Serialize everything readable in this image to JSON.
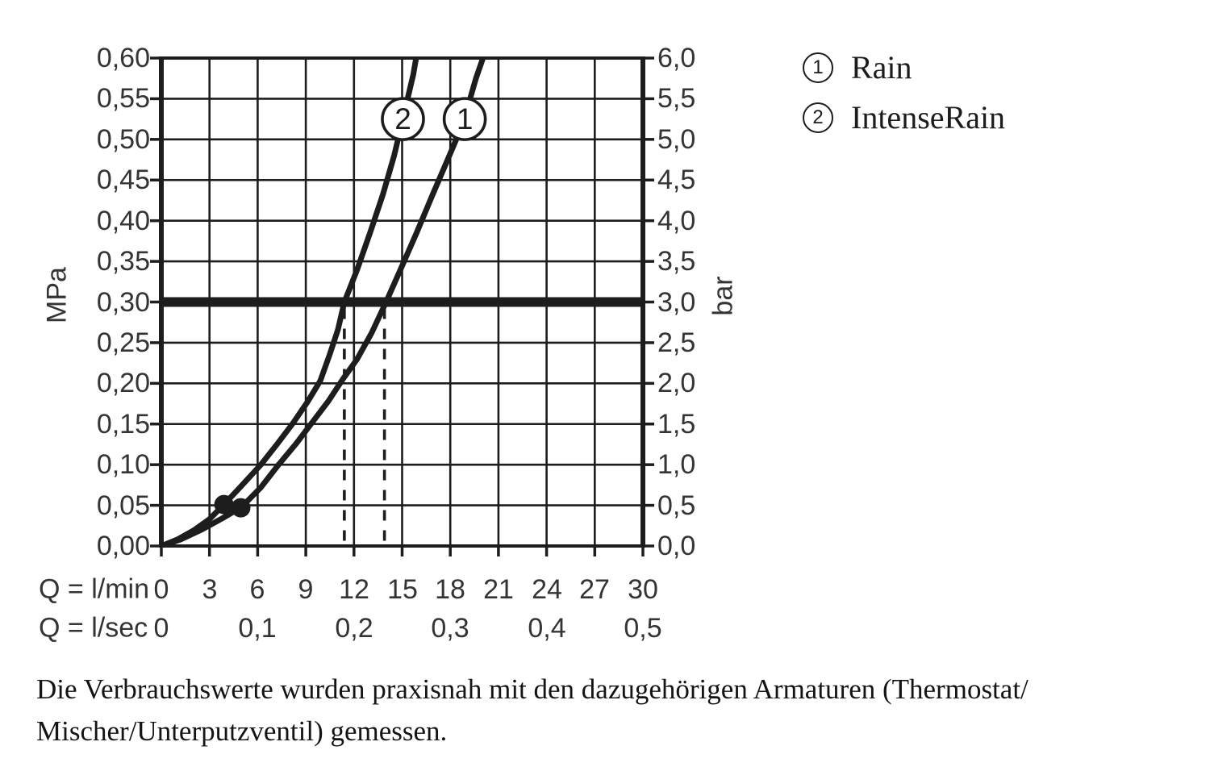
{
  "page": {
    "background": "#ffffff",
    "ink": "#1d1d1d",
    "text_color": "#343434"
  },
  "chart_data": {
    "type": "line",
    "title": "",
    "grid": true,
    "x_axis": {
      "label": "Q = l/min",
      "range": [
        0,
        30
      ],
      "grid_step": 3,
      "ticks": [
        {
          "v": 0,
          "label": "0"
        },
        {
          "v": 3,
          "label": "3"
        },
        {
          "v": 6,
          "label": "6"
        },
        {
          "v": 9,
          "label": "9"
        },
        {
          "v": 12,
          "label": "12"
        },
        {
          "v": 15,
          "label": "15"
        },
        {
          "v": 18,
          "label": "18"
        },
        {
          "v": 21,
          "label": "21"
        },
        {
          "v": 24,
          "label": "24"
        },
        {
          "v": 27,
          "label": "27"
        },
        {
          "v": 30,
          "label": "30"
        }
      ]
    },
    "x_axis_secondary": {
      "label": "Q = l/sec",
      "ticks": [
        {
          "v": 0,
          "label": "0"
        },
        {
          "v": 6,
          "label": "0,1"
        },
        {
          "v": 12,
          "label": "0,2"
        },
        {
          "v": 18,
          "label": "0,3"
        },
        {
          "v": 24,
          "label": "0,4"
        },
        {
          "v": 30,
          "label": "0,5"
        }
      ]
    },
    "y_axis_left": {
      "label": "MPa",
      "range": [
        0,
        0.6
      ],
      "grid_step": 0.05,
      "ticks": [
        {
          "v": 0.6,
          "label": "0,60"
        },
        {
          "v": 0.55,
          "label": "0,55"
        },
        {
          "v": 0.5,
          "label": "0,50"
        },
        {
          "v": 0.45,
          "label": "0,45"
        },
        {
          "v": 0.4,
          "label": "0,40"
        },
        {
          "v": 0.35,
          "label": "0,35"
        },
        {
          "v": 0.3,
          "label": "0,30"
        },
        {
          "v": 0.25,
          "label": "0,25"
        },
        {
          "v": 0.2,
          "label": "0,20"
        },
        {
          "v": 0.15,
          "label": "0,15"
        },
        {
          "v": 0.1,
          "label": "0,10"
        },
        {
          "v": 0.05,
          "label": "0,05"
        },
        {
          "v": 0.0,
          "label": "0,00"
        }
      ]
    },
    "y_axis_right": {
      "label": "bar",
      "range": [
        0,
        6
      ],
      "ticks": [
        {
          "v": 6.0,
          "label": "6,0"
        },
        {
          "v": 5.5,
          "label": "5,5"
        },
        {
          "v": 5.0,
          "label": "5,0"
        },
        {
          "v": 4.5,
          "label": "4,5"
        },
        {
          "v": 4.0,
          "label": "4,0"
        },
        {
          "v": 3.5,
          "label": "3,5"
        },
        {
          "v": 3.0,
          "label": "3,0"
        },
        {
          "v": 2.5,
          "label": "2,5"
        },
        {
          "v": 2.0,
          "label": "2,0"
        },
        {
          "v": 1.5,
          "label": "1,5"
        },
        {
          "v": 1.0,
          "label": "1,0"
        },
        {
          "v": 0.5,
          "label": "0,5"
        },
        {
          "v": 0.0,
          "label": "0,0"
        }
      ]
    },
    "series": [
      {
        "marker": "1",
        "name": "Rain",
        "label_pos": [
          18.9,
          0.525
        ],
        "points": [
          [
            0,
            0
          ],
          [
            1.2,
            0.008
          ],
          [
            2.5,
            0.02
          ],
          [
            3.8,
            0.034
          ],
          [
            5.0,
            0.048
          ],
          [
            6.2,
            0.072
          ],
          [
            7.3,
            0.1
          ],
          [
            8.4,
            0.126
          ],
          [
            9.4,
            0.152
          ],
          [
            10.4,
            0.178
          ],
          [
            11.3,
            0.205
          ],
          [
            12.2,
            0.23
          ],
          [
            13.1,
            0.262
          ],
          [
            14.0,
            0.3
          ],
          [
            14.9,
            0.34
          ],
          [
            15.9,
            0.385
          ],
          [
            16.9,
            0.432
          ],
          [
            17.9,
            0.478
          ],
          [
            18.8,
            0.52
          ],
          [
            19.6,
            0.575
          ],
          [
            20.3,
            0.615
          ]
        ]
      },
      {
        "marker": "2",
        "name": "IntenseRain",
        "label_pos": [
          15.05,
          0.525
        ],
        "points": [
          [
            0,
            0
          ],
          [
            1.0,
            0.008
          ],
          [
            2.0,
            0.019
          ],
          [
            3.0,
            0.033
          ],
          [
            3.9,
            0.051
          ],
          [
            4.9,
            0.072
          ],
          [
            6.2,
            0.1
          ],
          [
            7.2,
            0.125
          ],
          [
            8.2,
            0.151
          ],
          [
            9.1,
            0.177
          ],
          [
            9.9,
            0.203
          ],
          [
            10.5,
            0.236
          ],
          [
            11.0,
            0.266
          ],
          [
            11.4,
            0.3
          ],
          [
            12.2,
            0.34
          ],
          [
            13.0,
            0.385
          ],
          [
            13.8,
            0.432
          ],
          [
            14.5,
            0.48
          ],
          [
            15.1,
            0.53
          ],
          [
            15.7,
            0.58
          ],
          [
            16.0,
            0.615
          ]
        ]
      }
    ],
    "reference_line": {
      "y_mpa": 0.3
    },
    "drop_lines": [
      {
        "x": 11.4
      },
      {
        "x": 13.9
      }
    ],
    "dots": [
      [
        3.9,
        0.051
      ],
      [
        4.95,
        0.047
      ]
    ],
    "legend": {
      "position": "top-right",
      "items": [
        {
          "marker": "1",
          "label": "Rain"
        },
        {
          "marker": "2",
          "label": "IntenseRain"
        }
      ]
    }
  },
  "footer": {
    "lines": [
      "Die Verbrauchswerte wurden praxisnah mit den dazugehörigen Armaturen (Thermostat/",
      "Mischer/Unterputzventil) gemessen."
    ]
  }
}
